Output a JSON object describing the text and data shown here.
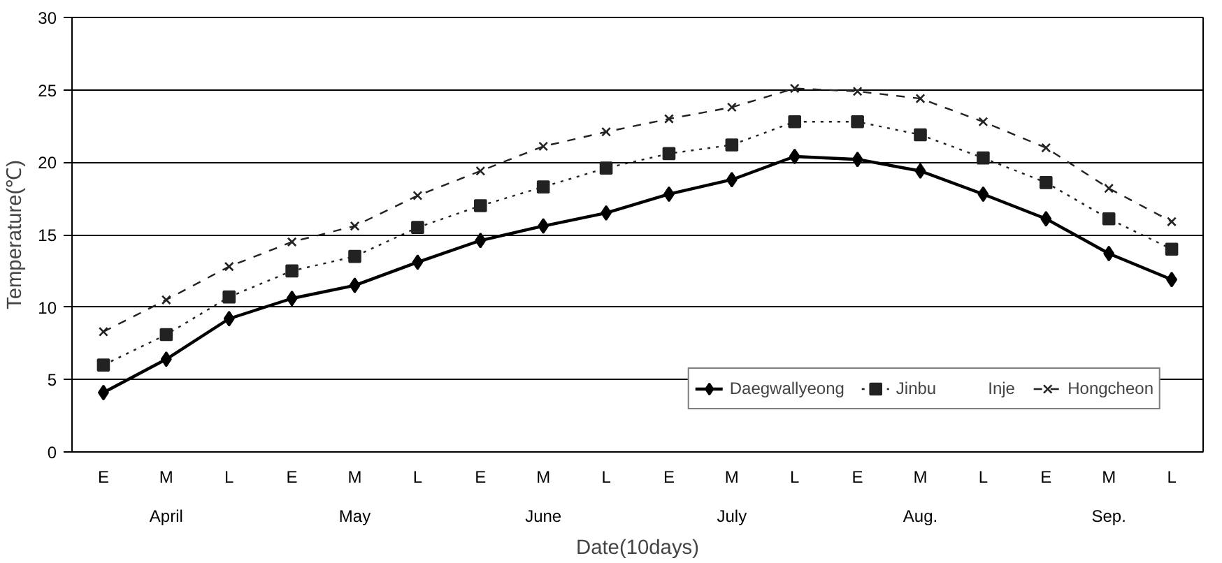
{
  "chart_data": {
    "type": "line",
    "xlabel": "Date(10days)",
    "ylabel": "Temperature(℃)",
    "categories": [
      "E",
      "M",
      "L",
      "E",
      "M",
      "L",
      "E",
      "M",
      "L",
      "E",
      "M",
      "L",
      "E",
      "M",
      "L",
      "E",
      "M",
      "L"
    ],
    "annotations": [
      "April",
      "May",
      "June",
      "July",
      "Aug.",
      "Sep."
    ],
    "ylim": [
      0,
      30
    ],
    "yticks": [
      0,
      5,
      10,
      15,
      20,
      25,
      30
    ],
    "grid": "y",
    "legend": "bottom right",
    "series": [
      {
        "name": "Daegwallyeong",
        "color": "#000000",
        "marker": "diamond",
        "line_style": "solid",
        "values": [
          4.1,
          6.4,
          9.2,
          10.6,
          11.5,
          13.1,
          14.6,
          15.6,
          16.5,
          17.8,
          18.8,
          20.4,
          20.2,
          19.4,
          17.8,
          16.1,
          13.7,
          11.9
        ]
      },
      {
        "name": "Jinbu",
        "color": "#222222",
        "marker": "square",
        "line_style": "dotted",
        "values": [
          6.0,
          8.1,
          10.7,
          12.5,
          13.5,
          15.5,
          17.0,
          18.3,
          19.6,
          20.6,
          21.2,
          22.8,
          22.8,
          21.9,
          20.3,
          18.6,
          16.1,
          14.0
        ]
      },
      {
        "name": "Inje",
        "values": [
          null,
          null,
          null,
          null,
          null,
          null,
          null,
          null,
          null,
          null,
          null,
          null,
          null,
          null,
          null,
          null,
          null,
          null
        ]
      },
      {
        "name": "Hongcheon",
        "color": "#222222",
        "marker": "cross",
        "line_style": "dashed",
        "values": [
          8.3,
          10.5,
          12.8,
          14.5,
          15.6,
          17.7,
          19.4,
          21.1,
          22.1,
          23.0,
          23.8,
          25.1,
          24.9,
          24.4,
          22.8,
          21.0,
          18.2,
          15.9
        ]
      }
    ]
  }
}
